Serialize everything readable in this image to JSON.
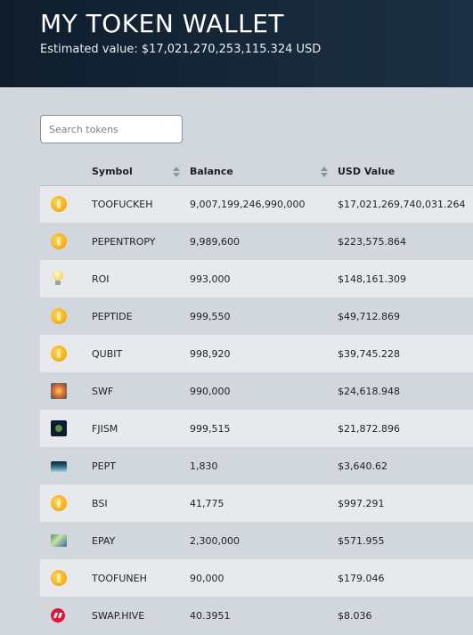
{
  "header": {
    "title": "MY TOKEN WALLET",
    "estimated_value": "Estimated value: $17,021,270,253,115.324 USD"
  },
  "search": {
    "placeholder": "Search tokens",
    "value": ""
  },
  "table": {
    "columns": {
      "symbol": "Symbol",
      "balance": "Balance",
      "usd_value": "USD Value"
    },
    "rows": [
      {
        "icon": "gold-coin-icon",
        "symbol": "TOOFUCKEH",
        "balance": "9,007,199,246,990,000",
        "usd": "$17,021,269,740,031.264"
      },
      {
        "icon": "gold-coin-icon",
        "symbol": "PEPENTROPY",
        "balance": "9,989,600",
        "usd": "$223,575.864"
      },
      {
        "icon": "lightbulb-icon",
        "symbol": "ROI",
        "balance": "993,000",
        "usd": "$148,161.309"
      },
      {
        "icon": "gold-coin-icon",
        "symbol": "PEPTIDE",
        "balance": "999,550",
        "usd": "$49,712.869"
      },
      {
        "icon": "gold-coin-icon",
        "symbol": "QUBIT",
        "balance": "998,920",
        "usd": "$39,745.228"
      },
      {
        "icon": "swf-token-icon",
        "symbol": "SWF",
        "balance": "990,000",
        "usd": "$24,618.948"
      },
      {
        "icon": "fjism-token-icon",
        "symbol": "FJISM",
        "balance": "999,515",
        "usd": "$21,872.896"
      },
      {
        "icon": "pept-token-icon",
        "symbol": "PEPT",
        "balance": "1,830",
        "usd": "$3,640.62"
      },
      {
        "icon": "gold-coin-icon",
        "symbol": "BSI",
        "balance": "41,775",
        "usd": "$997.291"
      },
      {
        "icon": "epay-token-icon",
        "symbol": "EPAY",
        "balance": "2,300,000",
        "usd": "$571.955"
      },
      {
        "icon": "gold-coin-icon",
        "symbol": "TOOFUNEH",
        "balance": "90,000",
        "usd": "$179.046"
      },
      {
        "icon": "hive-logo-icon",
        "symbol": "SWAP.HIVE",
        "balance": "40.3951",
        "usd": "$8.036"
      }
    ]
  }
}
